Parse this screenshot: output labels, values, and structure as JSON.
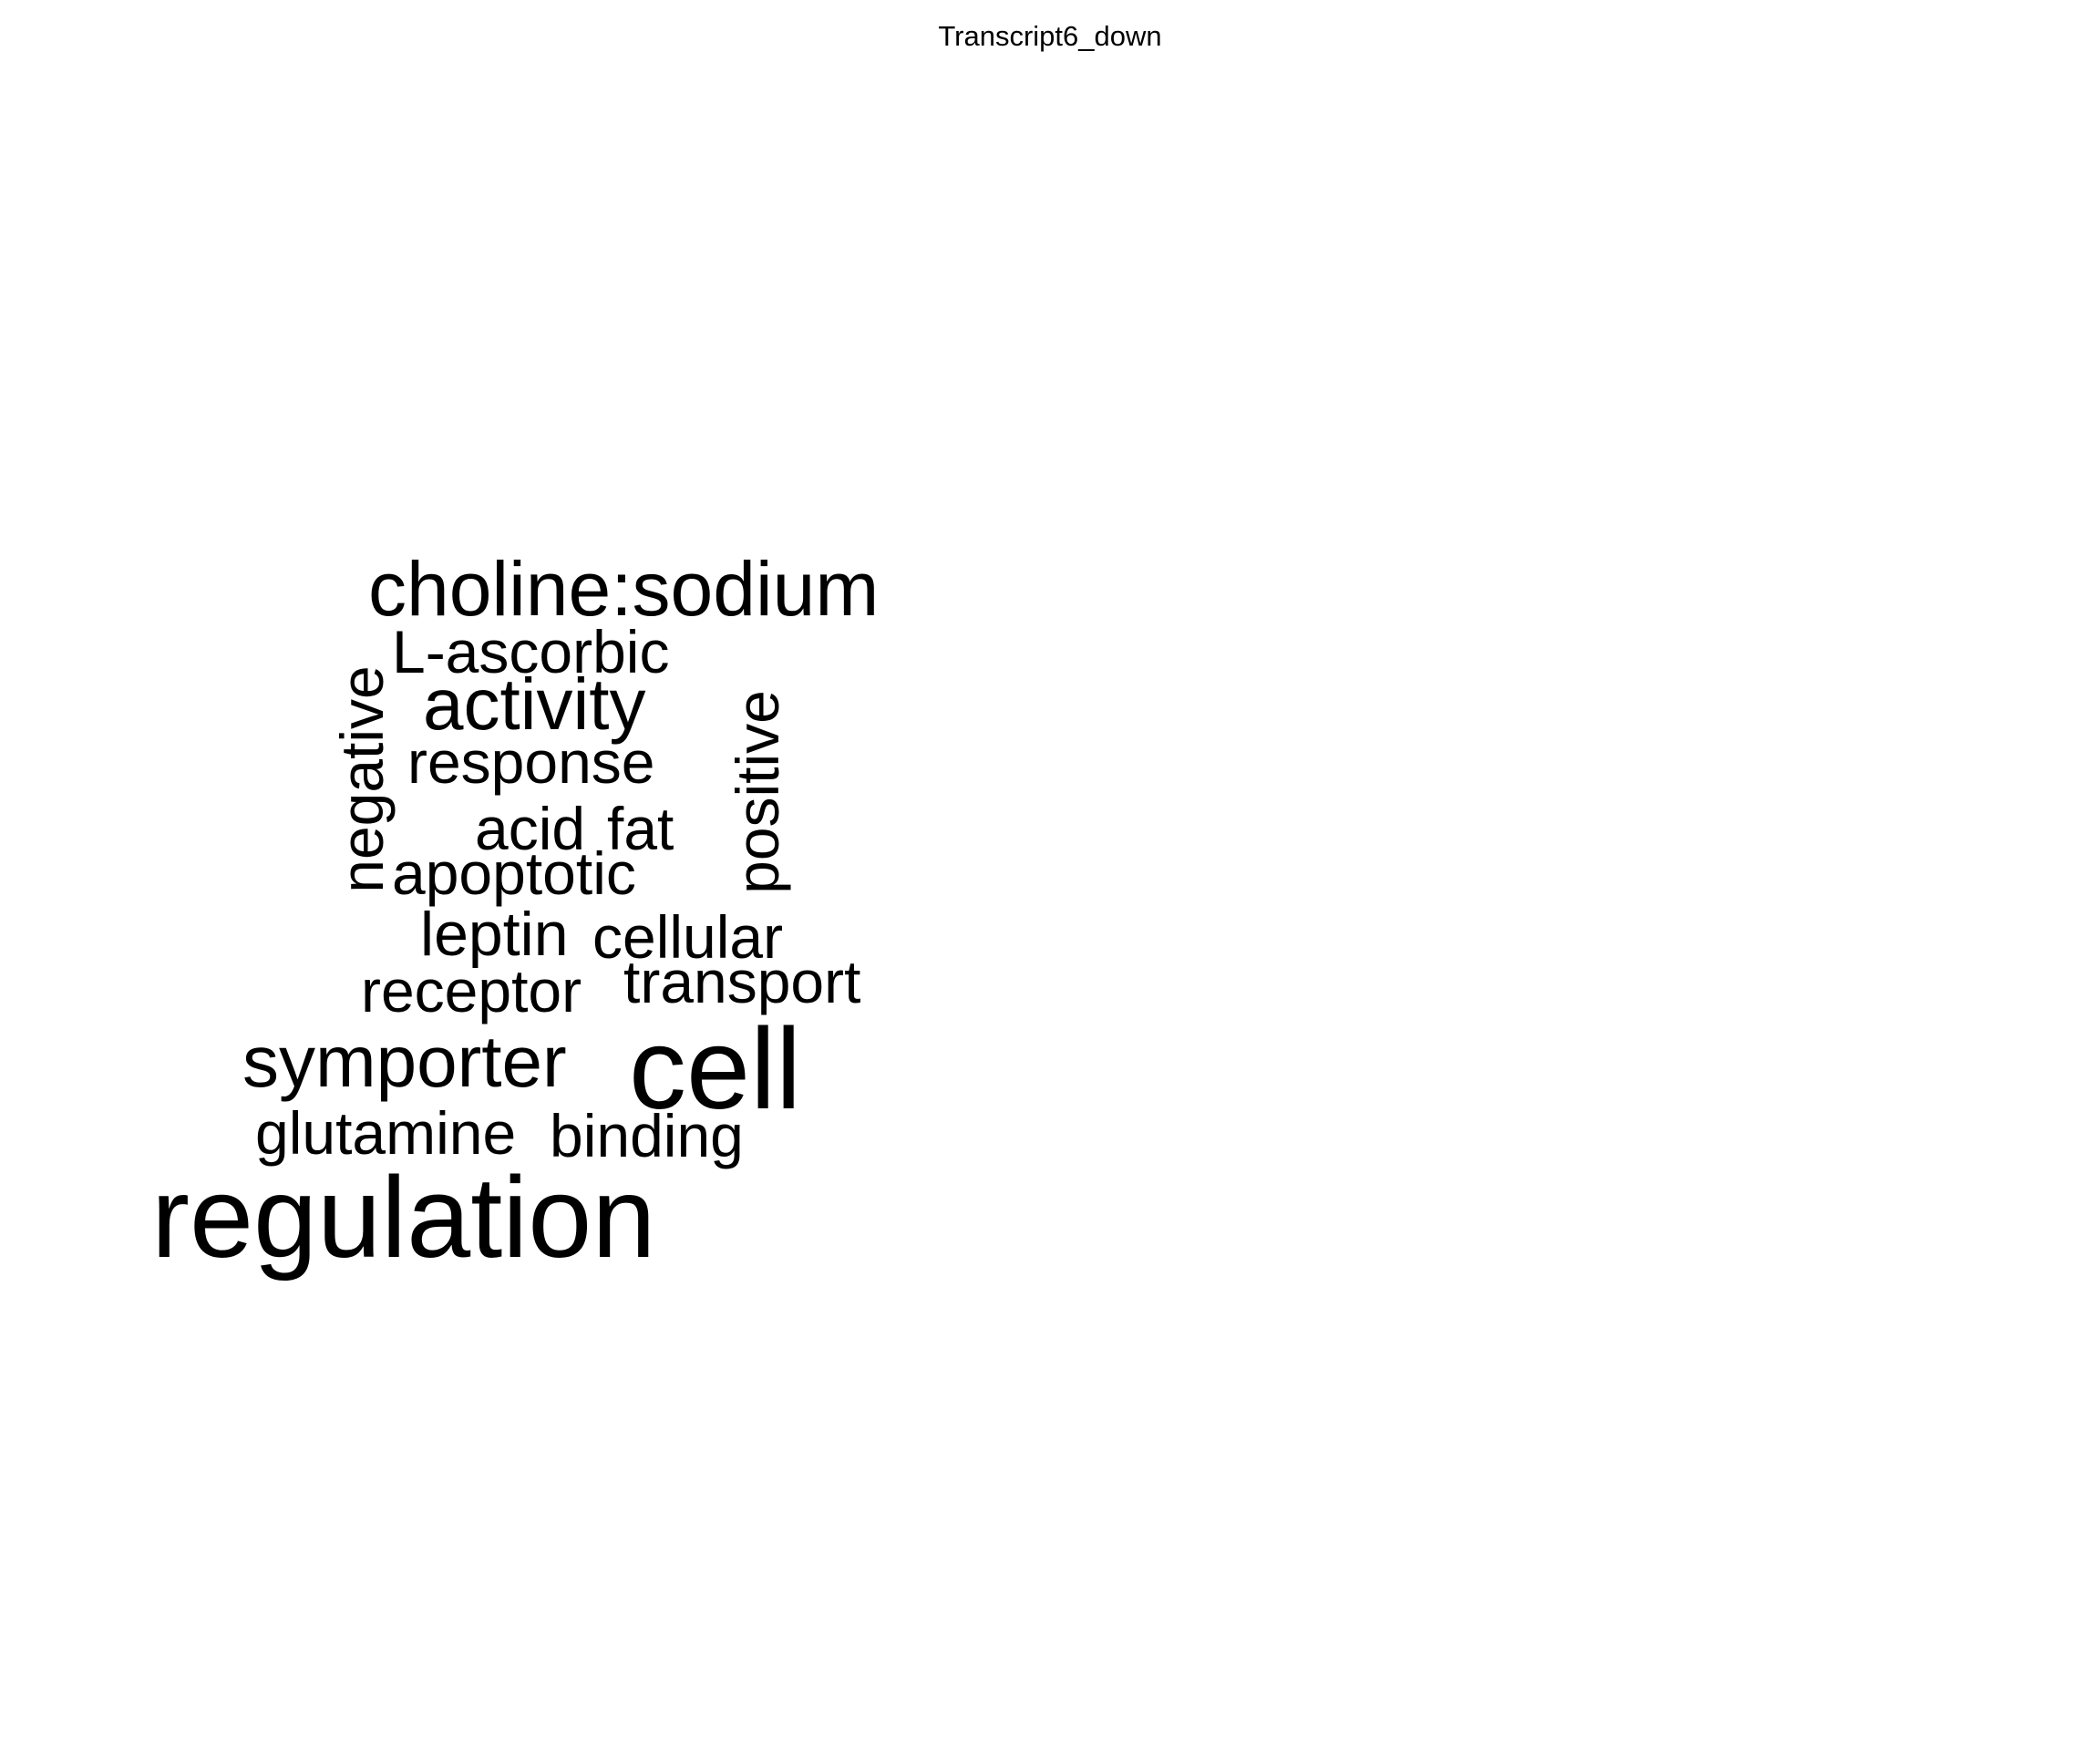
{
  "title": "Transcript6_down",
  "words": {
    "choline_sodium": "choline:sodium",
    "l_ascorbic": "L-ascorbic",
    "activity": "activity",
    "response": "response",
    "acid": "acid",
    "fat": "fat",
    "apoptotic": "apoptotic",
    "leptin": "leptin",
    "cellular": "cellular",
    "receptor": "receptor",
    "transport": "transport",
    "symporter": "symporter",
    "cell": "cell",
    "glutamine": "glutamine",
    "binding": "binding",
    "regulation": "regulation",
    "negative": "negative",
    "positive": "positive"
  }
}
